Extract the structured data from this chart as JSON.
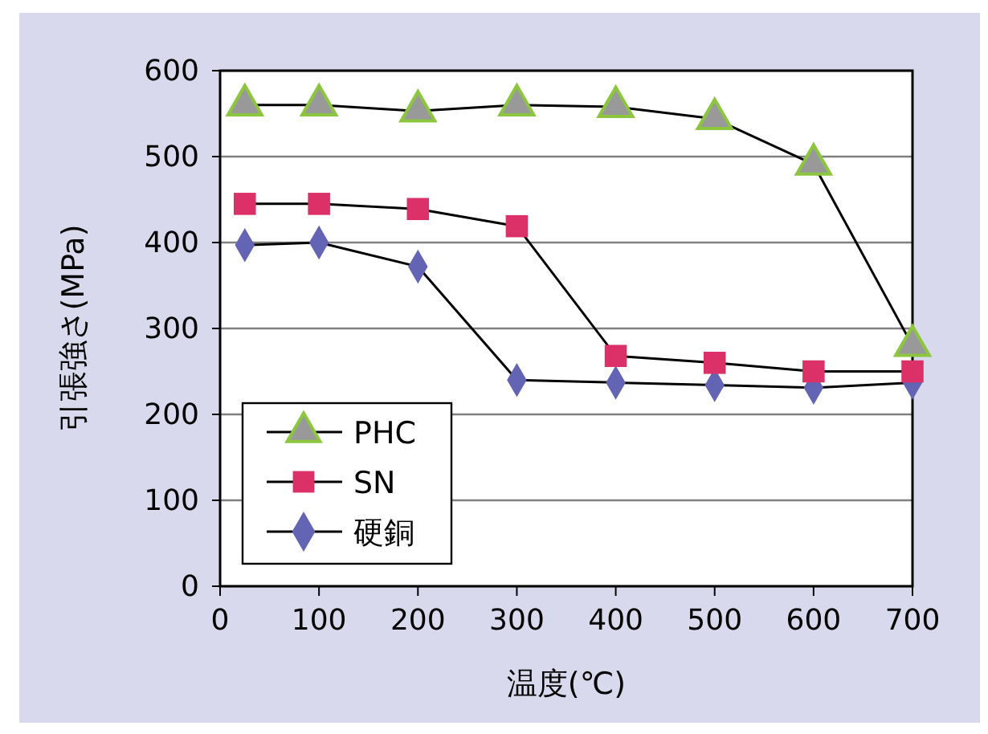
{
  "chart_data": {
    "type": "line",
    "xlabel": "温度(℃)",
    "ylabel": "引張強さ(MPa)",
    "x": [
      25,
      100,
      200,
      300,
      400,
      500,
      600,
      700
    ],
    "xlim": [
      0,
      700
    ],
    "xticks": [
      0,
      100,
      200,
      300,
      400,
      500,
      600,
      700
    ],
    "ylim": [
      0,
      600
    ],
    "yticks": [
      0,
      100,
      200,
      300,
      400,
      500,
      600
    ],
    "grid": "y",
    "legend": "bottom left",
    "series": [
      {
        "name": "PHC",
        "color": "#999999",
        "marker": "triangle",
        "values": [
          560,
          560,
          553,
          560,
          558,
          544,
          491,
          280
        ]
      },
      {
        "name": "SN",
        "color": "#db3068",
        "marker": "square",
        "values": [
          445,
          445,
          439,
          419,
          268,
          260,
          250,
          250
        ]
      },
      {
        "name": "硬銅",
        "color": "#6464b4",
        "marker": "diamond",
        "values": [
          397,
          400,
          372,
          240,
          237,
          234,
          231,
          237
        ]
      }
    ]
  }
}
